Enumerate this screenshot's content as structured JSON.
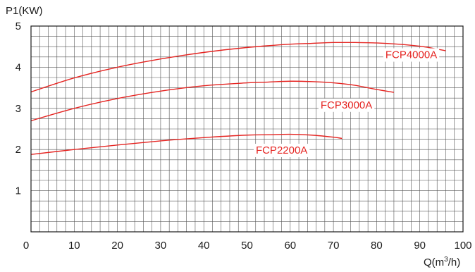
{
  "chart_data": {
    "type": "line",
    "title": "",
    "ylabel": "P1(KW)",
    "xlabel_main": "Q(m",
    "xlabel_sup": "3",
    "xlabel_tail": "/h)",
    "xlim": [
      0,
      100
    ],
    "ylim": [
      0,
      5
    ],
    "x_ticks": [
      0,
      10,
      20,
      30,
      40,
      50,
      60,
      70,
      80,
      90,
      100
    ],
    "y_ticks": [
      1,
      2,
      3,
      4,
      5
    ],
    "x_minor_step": 2,
    "y_minor_step": 0.25,
    "grid": true,
    "series_color": "#e52421",
    "series": [
      {
        "name": "FCP4000A",
        "x": [
          0,
          10,
          20,
          30,
          40,
          50,
          60,
          65,
          70,
          75,
          80,
          85,
          90,
          93,
          96
        ],
        "y": [
          3.4,
          3.74,
          4.0,
          4.2,
          4.36,
          4.48,
          4.56,
          4.58,
          4.6,
          4.6,
          4.59,
          4.56,
          4.51,
          4.46,
          4.4
        ],
        "label_anchor": {
          "x": 94,
          "y": 4.22
        }
      },
      {
        "name": "FCP3000A",
        "x": [
          0,
          10,
          20,
          30,
          40,
          50,
          55,
          60,
          65,
          70,
          75,
          80,
          84
        ],
        "y": [
          2.7,
          3.0,
          3.24,
          3.42,
          3.55,
          3.62,
          3.64,
          3.66,
          3.65,
          3.62,
          3.56,
          3.46,
          3.39
        ],
        "label_anchor": {
          "x": 79,
          "y": 3.0
        }
      },
      {
        "name": "FCP2200A",
        "x": [
          0,
          10,
          20,
          30,
          40,
          50,
          55,
          60,
          65,
          70,
          72
        ],
        "y": [
          1.88,
          2.0,
          2.11,
          2.21,
          2.29,
          2.35,
          2.36,
          2.37,
          2.35,
          2.3,
          2.27
        ],
        "label_anchor": {
          "x": 64,
          "y": 1.9
        }
      }
    ]
  }
}
